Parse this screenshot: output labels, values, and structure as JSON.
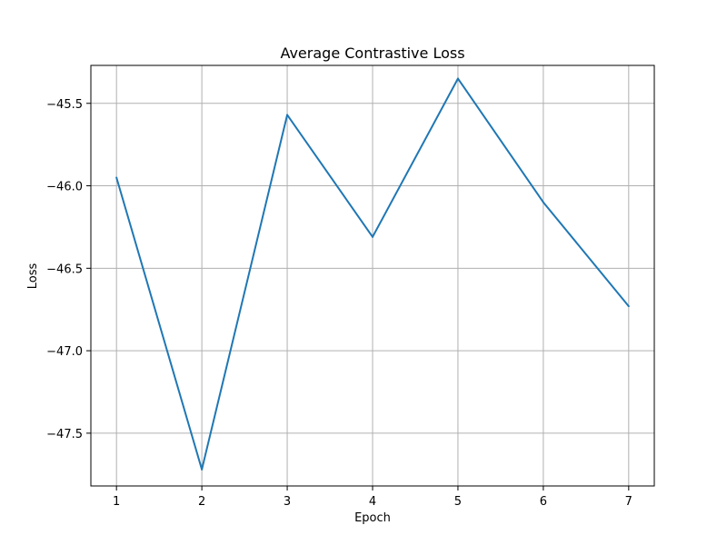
{
  "chart_data": {
    "type": "line",
    "title": "Average Contrastive Loss",
    "xlabel": "Epoch",
    "ylabel": "Loss",
    "x": [
      1,
      2,
      3,
      4,
      5,
      6,
      7
    ],
    "series": [
      {
        "values": [
          -45.95,
          -47.72,
          -45.57,
          -46.31,
          -45.35,
          -46.1,
          -46.73
        ],
        "color": "#1f77b4"
      }
    ],
    "xticks": [
      1,
      2,
      3,
      4,
      5,
      6,
      7
    ],
    "xtick_labels": [
      "1",
      "2",
      "3",
      "4",
      "5",
      "6",
      "7"
    ],
    "yticks": [
      -47.5,
      -47.0,
      -46.5,
      -46.0,
      -45.5
    ],
    "ytick_labels": [
      "−47.5",
      "−47.0",
      "−46.5",
      "−46.0",
      "−45.5"
    ],
    "xlim": [
      0.7,
      7.3
    ],
    "ylim": [
      -47.82,
      -45.27
    ],
    "grid": true,
    "legend": "none"
  }
}
